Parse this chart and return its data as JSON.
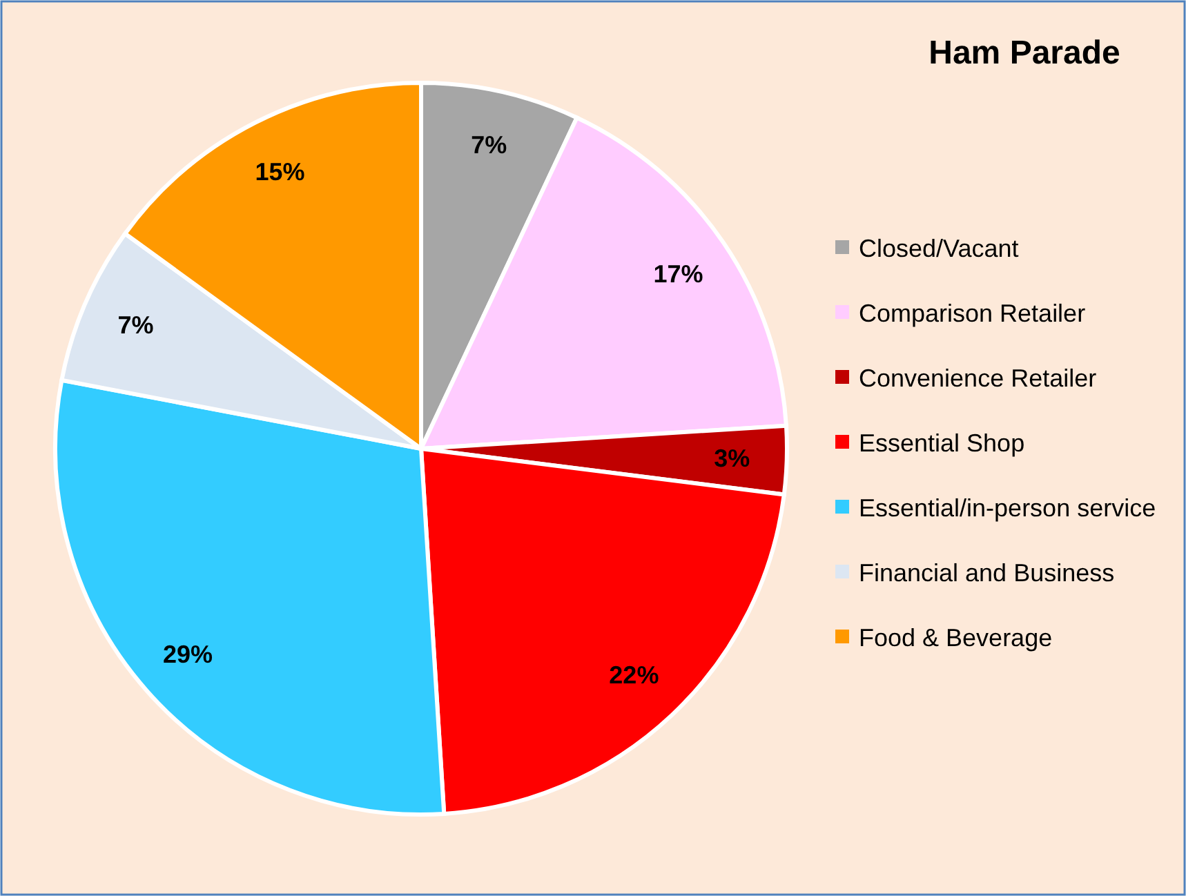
{
  "chart_data": {
    "type": "pie",
    "title": "Ham Parade",
    "categories": [
      "Closed/Vacant",
      "Comparison Retailer",
      "Convenience Retailer",
      "Essential Shop",
      "Essential/in-person service",
      "Financial and Business",
      "Food & Beverage"
    ],
    "values": [
      7,
      17,
      3,
      22,
      29,
      7,
      15
    ],
    "colors": [
      "#a6a6a6",
      "#ffccff",
      "#c00000",
      "#ff0000",
      "#33ccff",
      "#dce6f2",
      "#ff9900"
    ],
    "value_labels": [
      "7%",
      "17%",
      "3%",
      "22%",
      "29%",
      "7%",
      "15%"
    ],
    "legend": "right"
  }
}
